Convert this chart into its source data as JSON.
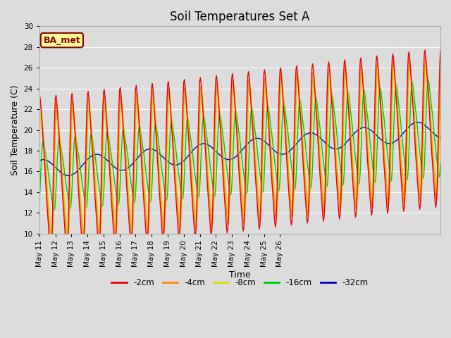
{
  "title": "Soil Temperatures Set A",
  "xlabel": "Time",
  "ylabel": "Soil Temperature (C)",
  "ylim": [
    10,
    30
  ],
  "background_color": "#dcdcdc",
  "plot_bg_color": "#dcdcdc",
  "annotation_text": "BA_met",
  "annotation_bg": "#ffff99",
  "annotation_border": "#8b0000",
  "series": [
    {
      "label": "-2cm",
      "color": "#ee0000"
    },
    {
      "label": "-4cm",
      "color": "#ff8800"
    },
    {
      "label": "-8cm",
      "color": "#dddd00"
    },
    {
      "label": "-16cm",
      "color": "#00cc00"
    },
    {
      "label": "-32cm",
      "color": "#0000cc"
    }
  ],
  "xtick_labels": [
    "May 11",
    "May 12",
    "May 13",
    "May 14",
    "May 15",
    "May 16",
    "May 17",
    "May 18",
    "May 19",
    "May 20",
    "May 21",
    "May 22",
    "May 23",
    "May 24",
    "May 25",
    "May 26"
  ],
  "ytick_values": [
    10,
    12,
    14,
    16,
    18,
    20,
    22,
    24,
    26,
    28,
    30
  ],
  "grid_color": "#ffffff",
  "title_fontsize": 12,
  "axis_label_fontsize": 9,
  "tick_fontsize": 7.5
}
